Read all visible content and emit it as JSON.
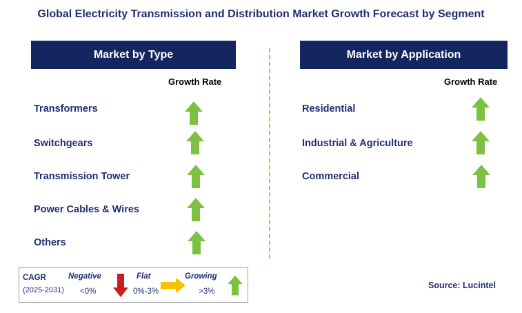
{
  "title": "Global Electricity Transmission and Distribution Market Growth Forecast by Segment",
  "left_panel": {
    "header": "Market by Type",
    "growth_rate_label": "Growth Rate",
    "items": [
      {
        "label": "Transformers",
        "trend": "growing"
      },
      {
        "label": "Switchgears",
        "trend": "growing"
      },
      {
        "label": "Transmission Tower",
        "trend": "growing"
      },
      {
        "label": "Power Cables & Wires",
        "trend": "growing"
      },
      {
        "label": "Others",
        "trend": "growing"
      }
    ]
  },
  "right_panel": {
    "header": "Market by Application",
    "growth_rate_label": "Growth Rate",
    "items": [
      {
        "label": "Residential",
        "trend": "growing"
      },
      {
        "label": "Industrial & Agriculture",
        "trend": "growing"
      },
      {
        "label": "Commercial",
        "trend": "growing"
      }
    ]
  },
  "legend": {
    "cagr_label": "CAGR",
    "period": "(2025-2031)",
    "negative_label": "Negative",
    "negative_range": "<0%",
    "flat_label": "Flat",
    "flat_range": "0%-3%",
    "growing_label": "Growing",
    "growing_range": ">3%"
  },
  "source": "Source: Lucintel",
  "colors": {
    "header_bg": "#13265f",
    "text_navy": "#1f2f73",
    "growing_arrow": "#7dc142",
    "negative_arrow": "#c81e1e",
    "flat_arrow": "#f5c200",
    "divider": "#f0a830"
  },
  "icons": {
    "growing": "arrow-up-icon",
    "negative": "arrow-down-icon",
    "flat": "arrow-right-icon"
  }
}
